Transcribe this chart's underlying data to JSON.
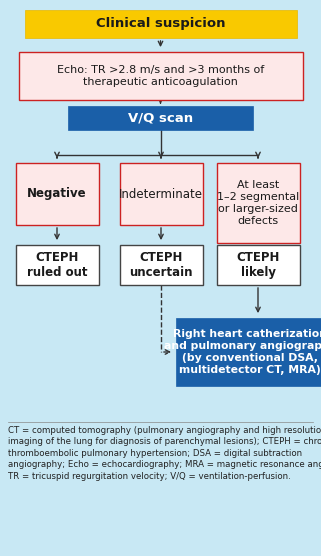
{
  "bg_color": "#c8e8f4",
  "title_box": {
    "text": "Clinical suspicion",
    "bg": "#f9c900",
    "border": "#e8b800",
    "text_color": "#1a1a1a",
    "fontsize": 9.5,
    "bold": true
  },
  "echo_box": {
    "text": "Echo: TR >2.8 m/s and >3 months of\ntherapeutic anticoagulation",
    "bg": "#fde8e8",
    "border": "#cc2222",
    "text_color": "#1a1a1a",
    "fontsize": 8.0,
    "bold": false
  },
  "vq_box": {
    "text": "V/Q scan",
    "bg": "#1a5fa8",
    "border": "#1a5fa8",
    "text_color": "#ffffff",
    "fontsize": 9.5,
    "bold": true
  },
  "outcome_boxes": [
    {
      "text": "Negative",
      "bg": "#fde8e8",
      "border": "#cc2222",
      "text_color": "#1a1a1a",
      "fontsize": 8.5,
      "bold": true
    },
    {
      "text": "Indeterminate",
      "bg": "#fde8e8",
      "border": "#cc2222",
      "text_color": "#1a1a1a",
      "fontsize": 8.5,
      "bold": false
    },
    {
      "text": "At least\n1–2 segmental\nor larger-sized\ndefects",
      "bg": "#fde8e8",
      "border": "#cc2222",
      "text_color": "#1a1a1a",
      "fontsize": 8.0,
      "bold": false
    }
  ],
  "cteph_boxes": [
    {
      "text": "CTEPH\nruled out",
      "bg": "#ffffff",
      "border": "#444444",
      "text_color": "#1a1a1a",
      "fontsize": 8.5,
      "bold": true
    },
    {
      "text": "CTEPH\nuncertain",
      "bg": "#ffffff",
      "border": "#444444",
      "text_color": "#1a1a1a",
      "fontsize": 8.5,
      "bold": true
    },
    {
      "text": "CTEPH\nlikely",
      "bg": "#ffffff",
      "border": "#444444",
      "text_color": "#1a1a1a",
      "fontsize": 8.5,
      "bold": true
    }
  ],
  "angio_box": {
    "text": "Right heart catherization\nand pulmonary angiography\n(by conventional DSA,\nmultidetector CT, MRA)",
    "bg": "#1a5fa8",
    "border": "#1a5fa8",
    "text_color": "#ffffff",
    "fontsize": 7.8,
    "bold": true
  },
  "footnote": "CT = computed tomography (pulmonary angiography and high resolution\nimaging of the lung for diagnosis of parenchymal lesions); CTEPH = chronic\nthromboembolic pulmonary hypertension; DSA = digital subtraction\nangiography; Echo = echocardiography; MRA = magnetic resonance angiography;\nTR = tricuspid regurgitation velocity; V/Q = ventilation-perfusion.",
  "footnote_fontsize": 6.2,
  "arrow_color": "#333333",
  "fig_w": 3.21,
  "fig_h": 5.56,
  "dpi": 100
}
